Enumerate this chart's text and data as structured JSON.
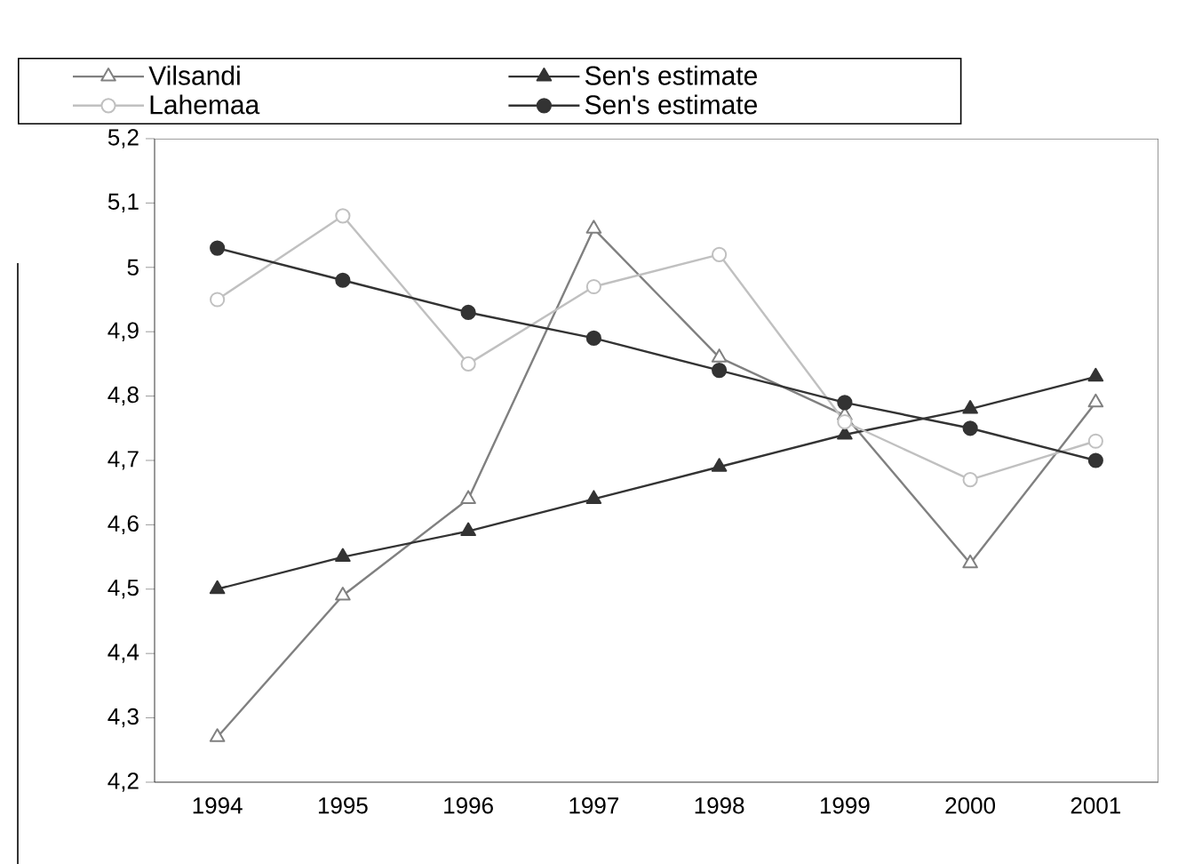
{
  "chart_data": {
    "type": "line",
    "categories": [
      "1994",
      "1995",
      "1996",
      "1997",
      "1998",
      "1999",
      "2000",
      "2001"
    ],
    "series": [
      {
        "name": "Vilsandi",
        "color": "#808080",
        "marker": "triangle",
        "values": [
          4.27,
          4.49,
          4.64,
          5.06,
          4.86,
          4.77,
          4.54,
          4.79
        ]
      },
      {
        "name": "Sen's estimate",
        "color": "#333333",
        "marker": "triangle",
        "values": [
          4.5,
          4.55,
          4.59,
          4.64,
          4.69,
          4.74,
          4.78,
          4.83
        ]
      },
      {
        "name": "Lahemaa",
        "color": "#c0c0c0",
        "marker": "circle",
        "values": [
          4.95,
          5.08,
          4.85,
          4.97,
          5.02,
          4.76,
          4.67,
          4.73
        ]
      },
      {
        "name": "Sen's estimate",
        "color": "#333333",
        "marker": "circle",
        "values": [
          5.03,
          4.98,
          4.93,
          4.89,
          4.84,
          4.79,
          4.75,
          4.7
        ]
      }
    ],
    "ylim": [
      4.2,
      5.2
    ],
    "yticks": [
      {
        "value": 4.2,
        "label": "4,2"
      },
      {
        "value": 4.3,
        "label": "4,3"
      },
      {
        "value": 4.4,
        "label": "4,4"
      },
      {
        "value": 4.5,
        "label": "4,5"
      },
      {
        "value": 4.6,
        "label": "4,6"
      },
      {
        "value": 4.7,
        "label": "4,7"
      },
      {
        "value": 4.8,
        "label": "4,8"
      },
      {
        "value": 4.9,
        "label": "4,9"
      },
      5,
      {
        "value": 5.1,
        "label": "5,1"
      },
      {
        "value": 5.2,
        "label": "5,2"
      }
    ],
    "grid": false,
    "legend": "top",
    "line_style": "solid"
  }
}
